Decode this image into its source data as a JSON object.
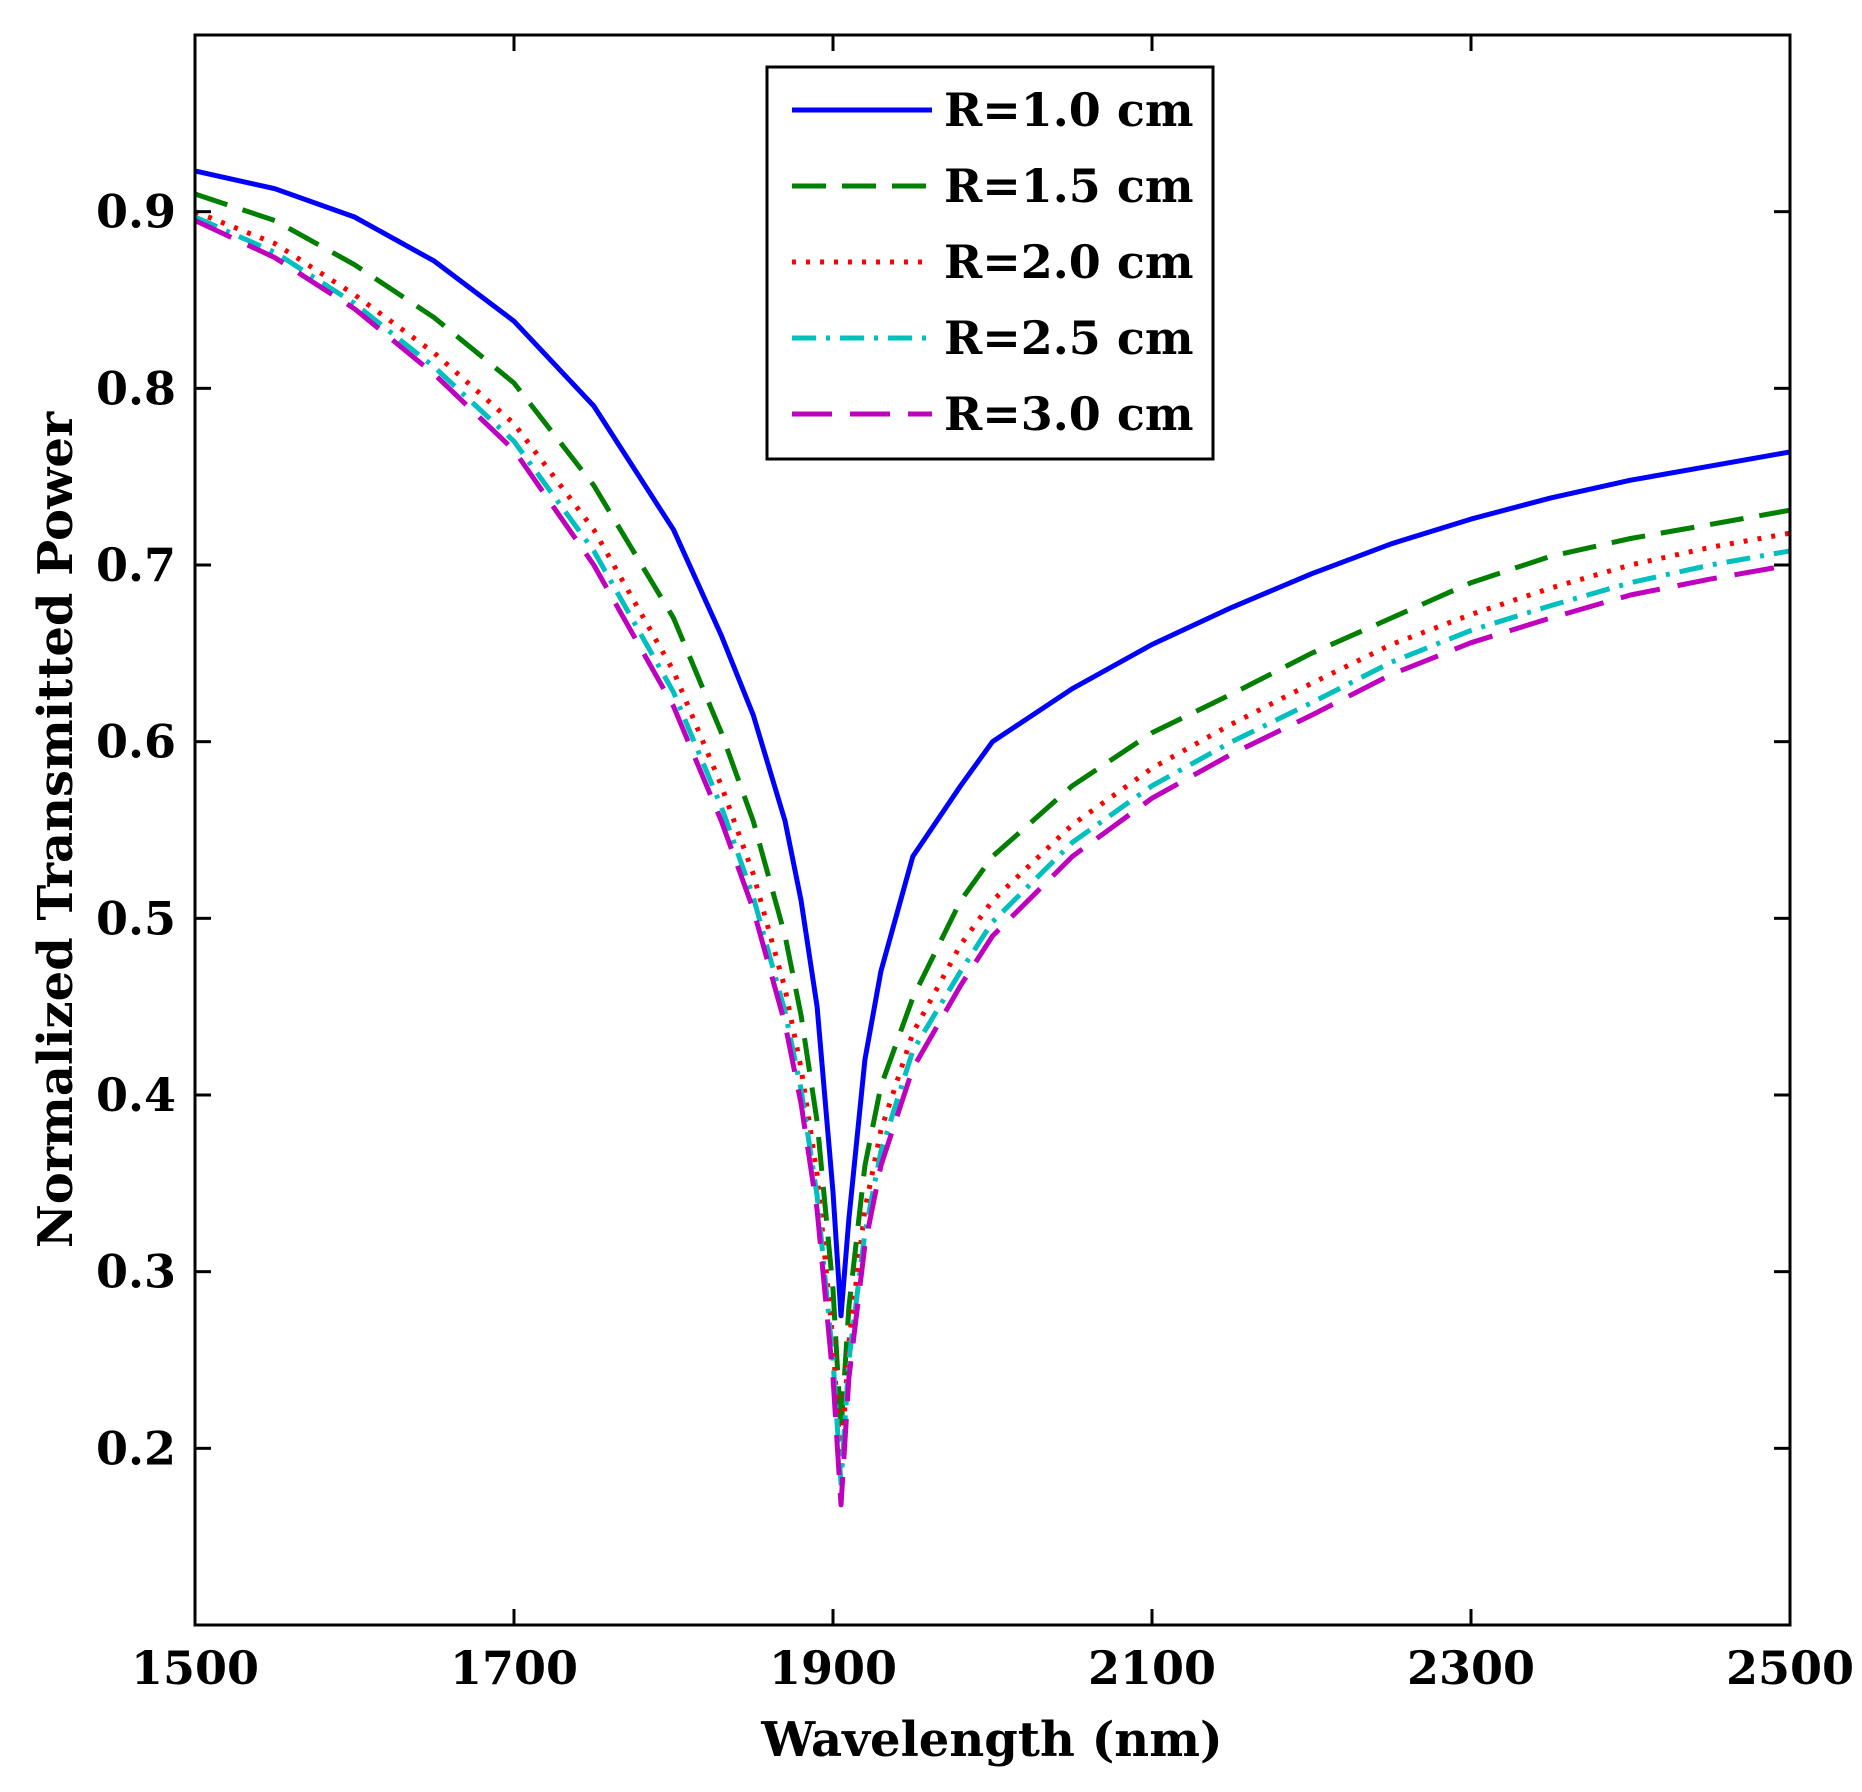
{
  "chart_data": {
    "type": "line",
    "title": "",
    "xlabel": "Wavelength (nm)",
    "ylabel": "Normalized Transmitted Power",
    "xlim": [
      1500,
      2500
    ],
    "ylim": [
      0.1,
      1.0
    ],
    "xticks": [
      1500,
      1700,
      1900,
      2100,
      2300,
      2500
    ],
    "xtick_labels": [
      "1500",
      "1700",
      "1900",
      "2100",
      "2300",
      "2500"
    ],
    "yticks": [
      0.2,
      0.3,
      0.4,
      0.5,
      0.6,
      0.7,
      0.8,
      0.9
    ],
    "ytick_labels": [
      "0.2",
      "0.3",
      "0.4",
      "0.5",
      "0.6",
      "0.7",
      "0.8",
      "0.9"
    ],
    "grid": false,
    "legend_position": "top-center",
    "x": [
      1500,
      1550,
      1600,
      1650,
      1700,
      1750,
      1800,
      1830,
      1850,
      1870,
      1880,
      1890,
      1900,
      1905,
      1910,
      1920,
      1930,
      1950,
      1980,
      2000,
      2050,
      2100,
      2150,
      2200,
      2250,
      2300,
      2350,
      2400,
      2450,
      2500
    ],
    "series": [
      {
        "name": "R=1.0 cm",
        "color": "#0000ff",
        "dash": "solid",
        "values": [
          0.923,
          0.913,
          0.897,
          0.872,
          0.838,
          0.79,
          0.72,
          0.66,
          0.615,
          0.555,
          0.51,
          0.45,
          0.345,
          0.275,
          0.33,
          0.42,
          0.47,
          0.535,
          0.575,
          0.6,
          0.63,
          0.655,
          0.676,
          0.695,
          0.712,
          0.726,
          0.738,
          0.748,
          0.756,
          0.764
        ]
      },
      {
        "name": "R=1.5 cm",
        "color": "#007f00",
        "dash": "dash",
        "values": [
          0.91,
          0.895,
          0.87,
          0.84,
          0.803,
          0.745,
          0.67,
          0.605,
          0.555,
          0.49,
          0.445,
          0.385,
          0.29,
          0.21,
          0.28,
          0.36,
          0.405,
          0.455,
          0.51,
          0.535,
          0.575,
          0.605,
          0.627,
          0.65,
          0.67,
          0.69,
          0.705,
          0.715,
          0.723,
          0.731
        ]
      },
      {
        "name": "R=2.0 cm",
        "color": "#ff0000",
        "dash": "dot",
        "values": [
          0.9,
          0.882,
          0.853,
          0.82,
          0.78,
          0.72,
          0.64,
          0.575,
          0.525,
          0.46,
          0.415,
          0.355,
          0.26,
          0.19,
          0.26,
          0.335,
          0.38,
          0.435,
          0.485,
          0.51,
          0.553,
          0.585,
          0.61,
          0.633,
          0.655,
          0.672,
          0.687,
          0.7,
          0.71,
          0.718
        ]
      },
      {
        "name": "R=2.5 cm",
        "color": "#00bfbf",
        "dash": "dashdot",
        "values": [
          0.897,
          0.877,
          0.848,
          0.812,
          0.77,
          0.708,
          0.628,
          0.563,
          0.512,
          0.447,
          0.403,
          0.343,
          0.25,
          0.18,
          0.25,
          0.322,
          0.368,
          0.425,
          0.47,
          0.498,
          0.543,
          0.575,
          0.6,
          0.622,
          0.645,
          0.663,
          0.677,
          0.69,
          0.7,
          0.708
        ]
      },
      {
        "name": "R=3.0 cm",
        "color": "#bf00bf",
        "dash": "longdash",
        "values": [
          0.895,
          0.874,
          0.845,
          0.808,
          0.765,
          0.7,
          0.62,
          0.555,
          0.505,
          0.44,
          0.395,
          0.335,
          0.24,
          0.168,
          0.24,
          0.315,
          0.36,
          0.415,
          0.462,
          0.49,
          0.535,
          0.568,
          0.593,
          0.615,
          0.638,
          0.656,
          0.67,
          0.683,
          0.692,
          0.7
        ]
      }
    ]
  }
}
